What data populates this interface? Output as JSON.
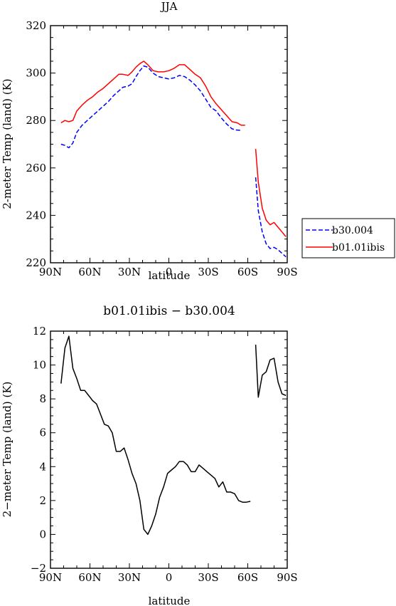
{
  "chart_data": [
    {
      "type": "line",
      "title": "JJA",
      "xlabel": "latitude",
      "ylabel": "2-meter Temp (land) (K)",
      "xlim": [
        90,
        -90
      ],
      "ylim": [
        220,
        320
      ],
      "x_ticks": [
        "90N",
        "60N",
        "30N",
        "0",
        "30S",
        "60S",
        "90S"
      ],
      "y_ticks": [
        "220",
        "240",
        "260",
        "280",
        "300",
        "320"
      ],
      "legend_position": "right",
      "series": [
        {
          "name": "b30.004",
          "color": "#0000ff",
          "dash": "dashed",
          "segments": [
            [
              [
                82,
                270
              ],
              [
                79,
                269.5
              ],
              [
                76,
                268.5
              ],
              [
                73,
                270.5
              ],
              [
                70,
                275
              ],
              [
                66,
                278
              ],
              [
                62,
                280
              ],
              [
                58,
                282
              ],
              [
                54,
                284
              ],
              [
                50,
                286
              ],
              [
                46,
                288
              ],
              [
                42,
                290.5
              ],
              [
                38,
                292.5
              ],
              [
                35,
                294
              ],
              [
                31,
                294.5
              ],
              [
                28,
                295.5
              ],
              [
                25,
                298.5
              ],
              [
                22,
                301
              ],
              [
                19,
                303
              ],
              [
                16,
                302.5
              ],
              [
                12,
                300
              ],
              [
                8,
                298.5
              ],
              [
                4,
                298
              ],
              [
                0,
                297.5
              ],
              [
                -4,
                298
              ],
              [
                -8,
                299
              ],
              [
                -12,
                298.5
              ],
              [
                -16,
                297
              ],
              [
                -20,
                295
              ],
              [
                -24,
                292.5
              ],
              [
                -28,
                289
              ],
              [
                -32,
                285.5
              ],
              [
                -36,
                284
              ],
              [
                -40,
                281
              ],
              [
                -44,
                278.5
              ],
              [
                -48,
                276.5
              ],
              [
                -51,
                276
              ],
              [
                -55,
                275.8
              ]
            ],
            [
              [
                -66,
                256
              ],
              [
                -68,
                242
              ],
              [
                -71,
                233
              ],
              [
                -74,
                228
              ],
              [
                -77,
                226
              ],
              [
                -80,
                226.5
              ],
              [
                -83,
                225.5
              ],
              [
                -86,
                224
              ],
              [
                -89,
                222.5
              ]
            ]
          ]
        },
        {
          "name": "b01.01ibis",
          "color": "#ff0000",
          "dash": "solid",
          "segments": [
            [
              [
                82,
                279
              ],
              [
                79,
                280
              ],
              [
                76,
                279.5
              ],
              [
                73,
                280
              ],
              [
                70,
                284
              ],
              [
                66,
                286.5
              ],
              [
                62,
                288.5
              ],
              [
                58,
                290
              ],
              [
                54,
                292
              ],
              [
                50,
                293.5
              ],
              [
                46,
                295.5
              ],
              [
                42,
                297.5
              ],
              [
                38,
                299.5
              ],
              [
                35,
                299.5
              ],
              [
                31,
                299
              ],
              [
                28,
                300.5
              ],
              [
                25,
                302.5
              ],
              [
                22,
                304
              ],
              [
                19,
                305
              ],
              [
                16,
                303.5
              ],
              [
                12,
                301
              ],
              [
                8,
                300.5
              ],
              [
                4,
                300.5
              ],
              [
                0,
                301
              ],
              [
                -4,
                302
              ],
              [
                -8,
                303.5
              ],
              [
                -12,
                303.5
              ],
              [
                -16,
                301.5
              ],
              [
                -20,
                299.5
              ],
              [
                -24,
                298
              ],
              [
                -28,
                294.5
              ],
              [
                -32,
                290
              ],
              [
                -36,
                287
              ],
              [
                -40,
                284.5
              ],
              [
                -44,
                282
              ],
              [
                -48,
                279.5
              ],
              [
                -52,
                279
              ],
              [
                -55,
                278
              ],
              [
                -58,
                278
              ]
            ],
            [
              [
                -66,
                268
              ],
              [
                -68,
                254
              ],
              [
                -71,
                243
              ],
              [
                -74,
                238
              ],
              [
                -77,
                236
              ],
              [
                -80,
                237
              ],
              [
                -83,
                235
              ],
              [
                -86,
                233
              ],
              [
                -89,
                231
              ]
            ]
          ]
        }
      ]
    },
    {
      "type": "line",
      "title": "b01.01ibis  −  b30.004",
      "xlabel": "latitude",
      "ylabel": "2−meter Temp (land) (K)",
      "xlim": [
        90,
        -90
      ],
      "ylim": [
        -2,
        12
      ],
      "x_ticks": [
        "90N",
        "60N",
        "30N",
        "0",
        "30S",
        "60S",
        "90S"
      ],
      "y_ticks": [
        "−2",
        "0",
        "2",
        "4",
        "6",
        "8",
        "10",
        "12"
      ],
      "series": [
        {
          "color": "#000000",
          "dash": "solid",
          "segments": [
            [
              [
                82,
                8.9
              ],
              [
                79,
                11
              ],
              [
                76,
                11.7
              ],
              [
                73,
                9.8
              ],
              [
                70,
                9.2
              ],
              [
                67,
                8.5
              ],
              [
                64,
                8.5
              ],
              [
                61,
                8.2
              ],
              [
                58,
                7.9
              ],
              [
                55,
                7.7
              ],
              [
                52,
                7.1
              ],
              [
                49,
                6.5
              ],
              [
                46,
                6.4
              ],
              [
                43,
                6.0
              ],
              [
                40,
                4.9
              ],
              [
                37,
                4.9
              ],
              [
                34,
                5.1
              ],
              [
                31,
                4.4
              ],
              [
                28,
                3.6
              ],
              [
                25,
                3.0
              ],
              [
                22,
                2.0
              ],
              [
                19,
                0.3
              ],
              [
                16,
                0.0
              ],
              [
                13,
                0.5
              ],
              [
                10,
                1.2
              ],
              [
                7,
                2.2
              ],
              [
                4,
                2.8
              ],
              [
                1,
                3.6
              ],
              [
                -2,
                3.8
              ],
              [
                -5,
                4.0
              ],
              [
                -8,
                4.3
              ],
              [
                -11,
                4.3
              ],
              [
                -14,
                4.1
              ],
              [
                -17,
                3.7
              ],
              [
                -20,
                3.7
              ],
              [
                -23,
                4.1
              ],
              [
                -26,
                3.9
              ],
              [
                -29,
                3.7
              ],
              [
                -32,
                3.5
              ],
              [
                -35,
                3.3
              ],
              [
                -38,
                2.8
              ],
              [
                -41,
                3.1
              ],
              [
                -44,
                2.5
              ],
              [
                -47,
                2.5
              ],
              [
                -50,
                2.4
              ],
              [
                -53,
                2.0
              ],
              [
                -56,
                1.9
              ],
              [
                -59,
                1.9
              ],
              [
                -62,
                1.95
              ]
            ],
            [
              [
                -66,
                11.2
              ],
              [
                -68,
                8.1
              ],
              [
                -71,
                9.4
              ],
              [
                -74,
                9.6
              ],
              [
                -77,
                10.3
              ],
              [
                -80,
                10.4
              ],
              [
                -83,
                9.0
              ],
              [
                -86,
                8.3
              ],
              [
                -89,
                8.2
              ]
            ]
          ]
        }
      ]
    }
  ]
}
